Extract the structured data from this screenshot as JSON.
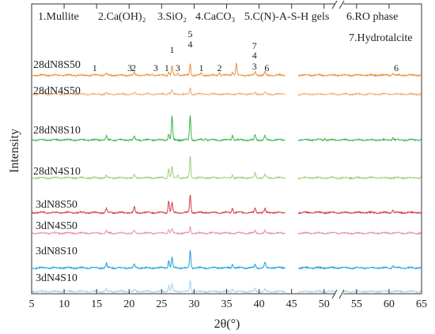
{
  "chart_data": {
    "type": "line",
    "title": "",
    "xlabel": "2θ(°)",
    "ylabel": "Intensity",
    "xlim": [
      5,
      65
    ],
    "x_break": [
      44,
      46
    ],
    "x_ticks": [
      5,
      10,
      15,
      20,
      25,
      30,
      35,
      40,
      45,
      50,
      55,
      60,
      65
    ],
    "grid": false,
    "legend_row1": [
      "1.Mullite",
      "2.Ca(OH)₂",
      "3.SiO₂",
      "4.CaCO₃",
      "5.C(N)-A-S-H gels",
      "6.RO phase"
    ],
    "legend_row2": [
      "7.Hydrotalcite"
    ],
    "series": [
      {
        "name": "28dN8S50",
        "color": "#e8913a",
        "peaks": [
          [
            16.5,
            2
          ],
          [
            20.8,
            3
          ],
          [
            23.6,
            2
          ],
          [
            26.1,
            4
          ],
          [
            26.6,
            12
          ],
          [
            27.5,
            3
          ],
          [
            29.4,
            15
          ],
          [
            31.1,
            2.5
          ],
          [
            33.9,
            3
          ],
          [
            35.9,
            4
          ],
          [
            36.5,
            15
          ],
          [
            39.4,
            4
          ],
          [
            40.9,
            4
          ],
          [
            60.6,
            3
          ]
        ]
      },
      {
        "name": "28dN4S50",
        "color": "#f0ad78",
        "peaks": [
          [
            16.5,
            2
          ],
          [
            20.8,
            2
          ],
          [
            26.1,
            3
          ],
          [
            26.6,
            5
          ],
          [
            29.4,
            8
          ],
          [
            39.4,
            2
          ],
          [
            40.9,
            2
          ]
        ]
      },
      {
        "name": "28dN8S10",
        "color": "#3ab54a",
        "peaks": [
          [
            16.5,
            5
          ],
          [
            20.8,
            4
          ],
          [
            26.1,
            8
          ],
          [
            26.6,
            30
          ],
          [
            29.4,
            32
          ],
          [
            31.8,
            3
          ],
          [
            35.9,
            6
          ],
          [
            39.4,
            7
          ],
          [
            40.9,
            5
          ],
          [
            50.1,
            2
          ],
          [
            60.6,
            3
          ]
        ]
      },
      {
        "name": "28dN4S10",
        "color": "#a3cc7c",
        "peaks": [
          [
            16.5,
            3
          ],
          [
            20.8,
            4
          ],
          [
            26.1,
            12
          ],
          [
            26.6,
            14
          ],
          [
            27.5,
            4
          ],
          [
            29.4,
            28
          ],
          [
            35.9,
            4
          ],
          [
            39.4,
            6
          ],
          [
            40.9,
            4
          ]
        ]
      },
      {
        "name": "3dN8S50",
        "color": "#d23a48",
        "peaks": [
          [
            16.5,
            5
          ],
          [
            20.8,
            7
          ],
          [
            26.1,
            15
          ],
          [
            26.6,
            13
          ],
          [
            29.4,
            22
          ],
          [
            35.9,
            6
          ],
          [
            39.4,
            6
          ],
          [
            40.9,
            5
          ],
          [
            60.6,
            3
          ]
        ]
      },
      {
        "name": "3dN4S50",
        "color": "#e58fb6",
        "peaks": [
          [
            16.5,
            3
          ],
          [
            20.8,
            3
          ],
          [
            26.1,
            5
          ],
          [
            26.6,
            5
          ],
          [
            29.4,
            8
          ],
          [
            39.4,
            3
          ],
          [
            40.9,
            3
          ]
        ]
      },
      {
        "name": "3dN8S10",
        "color": "#1aa0d8",
        "peaks": [
          [
            16.5,
            6
          ],
          [
            20.8,
            4
          ],
          [
            26.1,
            9
          ],
          [
            26.6,
            13
          ],
          [
            29.4,
            22
          ],
          [
            35.9,
            5
          ],
          [
            39.4,
            5
          ],
          [
            40.9,
            7
          ],
          [
            60.6,
            3
          ]
        ]
      },
      {
        "name": "3dN4S10",
        "color": "#9fd4ee",
        "peaks": [
          [
            16.5,
            3
          ],
          [
            20.8,
            3
          ],
          [
            26.1,
            8
          ],
          [
            26.6,
            10
          ],
          [
            29.4,
            14
          ],
          [
            35.9,
            4
          ],
          [
            39.4,
            4
          ],
          [
            40.9,
            3
          ]
        ]
      }
    ],
    "peak_labels": [
      {
        "text": "1",
        "x": 14.7,
        "series": "28dN8S50"
      },
      {
        "text": "3",
        "x": 20.1,
        "series": "28dN8S50"
      },
      {
        "text": "2",
        "x": 20.7,
        "series": "28dN8S50"
      },
      {
        "text": "3",
        "x": 24.1,
        "series": "28dN8S50"
      },
      {
        "text": "1",
        "x": 25.8,
        "series": "28dN8S50"
      },
      {
        "text": "1",
        "x": 26.6,
        "series": "28dN8S50"
      },
      {
        "text": "3",
        "x": 27.5,
        "series": "28dN8S50"
      },
      {
        "text": "5",
        "x": 29.4,
        "series": "28dN8S50"
      },
      {
        "text": "4",
        "x": 29.4,
        "series": "28dN8S50"
      },
      {
        "text": "1",
        "x": 31.1,
        "series": "28dN8S50"
      },
      {
        "text": "2",
        "x": 33.9,
        "series": "28dN8S50"
      },
      {
        "text": "7",
        "x": 39.3,
        "series": "28dN8S50"
      },
      {
        "text": "4",
        "x": 39.3,
        "series": "28dN8S50"
      },
      {
        "text": "3",
        "x": 39.3,
        "series": "28dN8S50"
      },
      {
        "text": "6",
        "x": 41.2,
        "series": "28dN8S50"
      },
      {
        "text": "6",
        "x": 61.1,
        "series": "28dN8S50"
      }
    ]
  }
}
